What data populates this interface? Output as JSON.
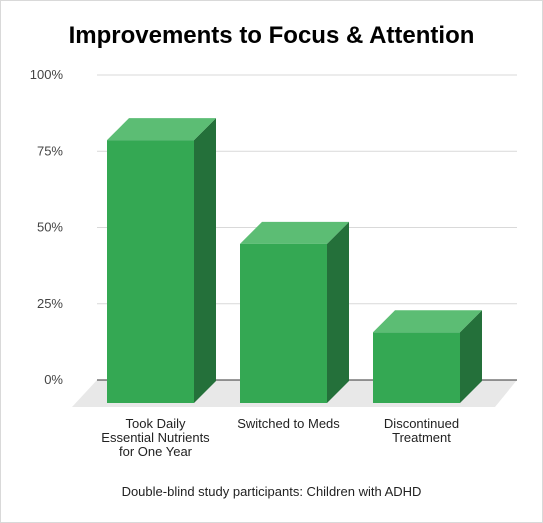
{
  "chart_data": {
    "type": "bar",
    "title": "Improvements to Focus & Attention",
    "subtitle": "Double-blind study participants: Children with ADHD",
    "categories": [
      [
        "Took Daily",
        "Essential Nutrients",
        "for One Year"
      ],
      [
        "Switched to Meds"
      ],
      [
        "Discontinued",
        "Treatment"
      ]
    ],
    "values": [
      77,
      43,
      14
    ],
    "ylim": [
      0,
      100
    ],
    "yticks": [
      0,
      25,
      50,
      75,
      100
    ],
    "ytick_labels": [
      "0%",
      "25%",
      "50%",
      "75%",
      "100%"
    ],
    "grid": true,
    "colors": {
      "bar_front": "#34a853",
      "bar_top": "#5cbd74",
      "bar_side": "#24703a",
      "floor": "#e8e8e8",
      "gridline": "#d9d9d9",
      "axis": "#333333"
    }
  }
}
